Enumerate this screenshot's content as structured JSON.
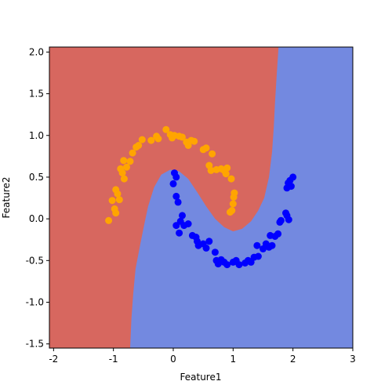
{
  "chart_data": {
    "type": "scatter",
    "title": "",
    "xlabel": "Feature1",
    "ylabel": "Feature2",
    "xlim": [
      -2.07,
      3.0
    ],
    "ylim": [
      -1.55,
      2.06
    ],
    "xticks": [
      "-2",
      "-1",
      "0",
      "1",
      "2",
      "3"
    ],
    "yticks": [
      "-1.5",
      "-1.0",
      "-0.5",
      "0.0",
      "0.5",
      "1.0",
      "1.5",
      "2.0"
    ],
    "grid": false,
    "legend": "none",
    "regions": {
      "left_color": "#d7675f",
      "right_color": "#7389e0",
      "boundary": [
        [
          -0.72,
          -1.55
        ],
        [
          -0.7,
          -1.2
        ],
        [
          -0.67,
          -0.9
        ],
        [
          -0.63,
          -0.6
        ],
        [
          -0.55,
          -0.3
        ],
        [
          -0.48,
          -0.05
        ],
        [
          -0.42,
          0.15
        ],
        [
          -0.32,
          0.38
        ],
        [
          -0.2,
          0.53
        ],
        [
          -0.05,
          0.59
        ],
        [
          0.1,
          0.57
        ],
        [
          0.25,
          0.48
        ],
        [
          0.4,
          0.32
        ],
        [
          0.55,
          0.15
        ],
        [
          0.7,
          0.0
        ],
        [
          0.85,
          -0.1
        ],
        [
          1.0,
          -0.15
        ],
        [
          1.15,
          -0.12
        ],
        [
          1.3,
          -0.03
        ],
        [
          1.42,
          0.1
        ],
        [
          1.52,
          0.25
        ],
        [
          1.6,
          0.5
        ],
        [
          1.65,
          0.8
        ],
        [
          1.68,
          1.1
        ],
        [
          1.7,
          1.4
        ],
        [
          1.73,
          1.75
        ],
        [
          1.76,
          2.06
        ]
      ]
    },
    "series": [
      {
        "color": "#ffa500",
        "points": [
          [
            -1.08,
            -0.02
          ],
          [
            -1.02,
            0.22
          ],
          [
            -0.98,
            0.12
          ],
          [
            -0.96,
            0.07
          ],
          [
            -0.96,
            0.35
          ],
          [
            -0.93,
            0.3
          ],
          [
            -0.9,
            0.23
          ],
          [
            -0.88,
            0.6
          ],
          [
            -0.85,
            0.55
          ],
          [
            -0.83,
            0.7
          ],
          [
            -0.82,
            0.48
          ],
          [
            -0.78,
            0.62
          ],
          [
            -0.72,
            0.69
          ],
          [
            -0.68,
            0.79
          ],
          [
            -0.62,
            0.86
          ],
          [
            -0.58,
            0.88
          ],
          [
            -0.52,
            0.95
          ],
          [
            -0.37,
            0.94
          ],
          [
            -0.28,
            0.99
          ],
          [
            -0.25,
            0.96
          ],
          [
            -0.12,
            1.07
          ],
          [
            -0.05,
            1.01
          ],
          [
            -0.02,
            0.97
          ],
          [
            0.02,
            1.0
          ],
          [
            0.1,
            0.99
          ],
          [
            0.15,
            0.98
          ],
          [
            0.22,
            0.92
          ],
          [
            0.25,
            0.88
          ],
          [
            0.3,
            0.94
          ],
          [
            0.35,
            0.93
          ],
          [
            0.5,
            0.83
          ],
          [
            0.55,
            0.85
          ],
          [
            0.6,
            0.64
          ],
          [
            0.65,
            0.78
          ],
          [
            0.63,
            0.58
          ],
          [
            0.72,
            0.59
          ],
          [
            0.8,
            0.6
          ],
          [
            0.85,
            0.58
          ],
          [
            0.88,
            0.54
          ],
          [
            0.9,
            0.61
          ],
          [
            0.95,
            0.08
          ],
          [
            0.97,
            0.48
          ],
          [
            1.0,
            0.18
          ],
          [
            0.98,
            0.1
          ],
          [
            1.01,
            0.26
          ],
          [
            1.02,
            0.31
          ]
        ]
      },
      {
        "color": "#0000ff",
        "points": [
          [
            0.0,
            0.42
          ],
          [
            0.02,
            0.55
          ],
          [
            0.05,
            0.5
          ],
          [
            0.05,
            0.27
          ],
          [
            0.08,
            0.2
          ],
          [
            0.05,
            -0.08
          ],
          [
            0.12,
            -0.03
          ],
          [
            0.18,
            -0.08
          ],
          [
            0.1,
            -0.17
          ],
          [
            0.15,
            0.04
          ],
          [
            0.25,
            -0.06
          ],
          [
            0.32,
            -0.2
          ],
          [
            0.38,
            -0.22
          ],
          [
            0.4,
            -0.27
          ],
          [
            0.42,
            -0.32
          ],
          [
            0.5,
            -0.3
          ],
          [
            0.55,
            -0.35
          ],
          [
            0.6,
            -0.27
          ],
          [
            0.7,
            -0.4
          ],
          [
            0.72,
            -0.5
          ],
          [
            0.75,
            -0.54
          ],
          [
            0.8,
            -0.49
          ],
          [
            0.85,
            -0.52
          ],
          [
            0.9,
            -0.55
          ],
          [
            1.0,
            -0.52
          ],
          [
            1.05,
            -0.5
          ],
          [
            1.1,
            -0.55
          ],
          [
            1.2,
            -0.53
          ],
          [
            1.25,
            -0.5
          ],
          [
            1.3,
            -0.52
          ],
          [
            1.35,
            -0.46
          ],
          [
            1.42,
            -0.45
          ],
          [
            1.4,
            -0.32
          ],
          [
            1.5,
            -0.36
          ],
          [
            1.55,
            -0.3
          ],
          [
            1.6,
            -0.34
          ],
          [
            1.65,
            -0.32
          ],
          [
            1.62,
            -0.2
          ],
          [
            1.7,
            -0.21
          ],
          [
            1.75,
            -0.18
          ],
          [
            1.78,
            -0.04
          ],
          [
            1.8,
            -0.02
          ],
          [
            1.88,
            0.07
          ],
          [
            1.9,
            0.04
          ],
          [
            1.93,
            -0.01
          ],
          [
            1.9,
            0.37
          ],
          [
            1.92,
            0.43
          ],
          [
            1.95,
            0.46
          ],
          [
            1.97,
            0.39
          ],
          [
            2.0,
            0.5
          ]
        ]
      }
    ]
  }
}
